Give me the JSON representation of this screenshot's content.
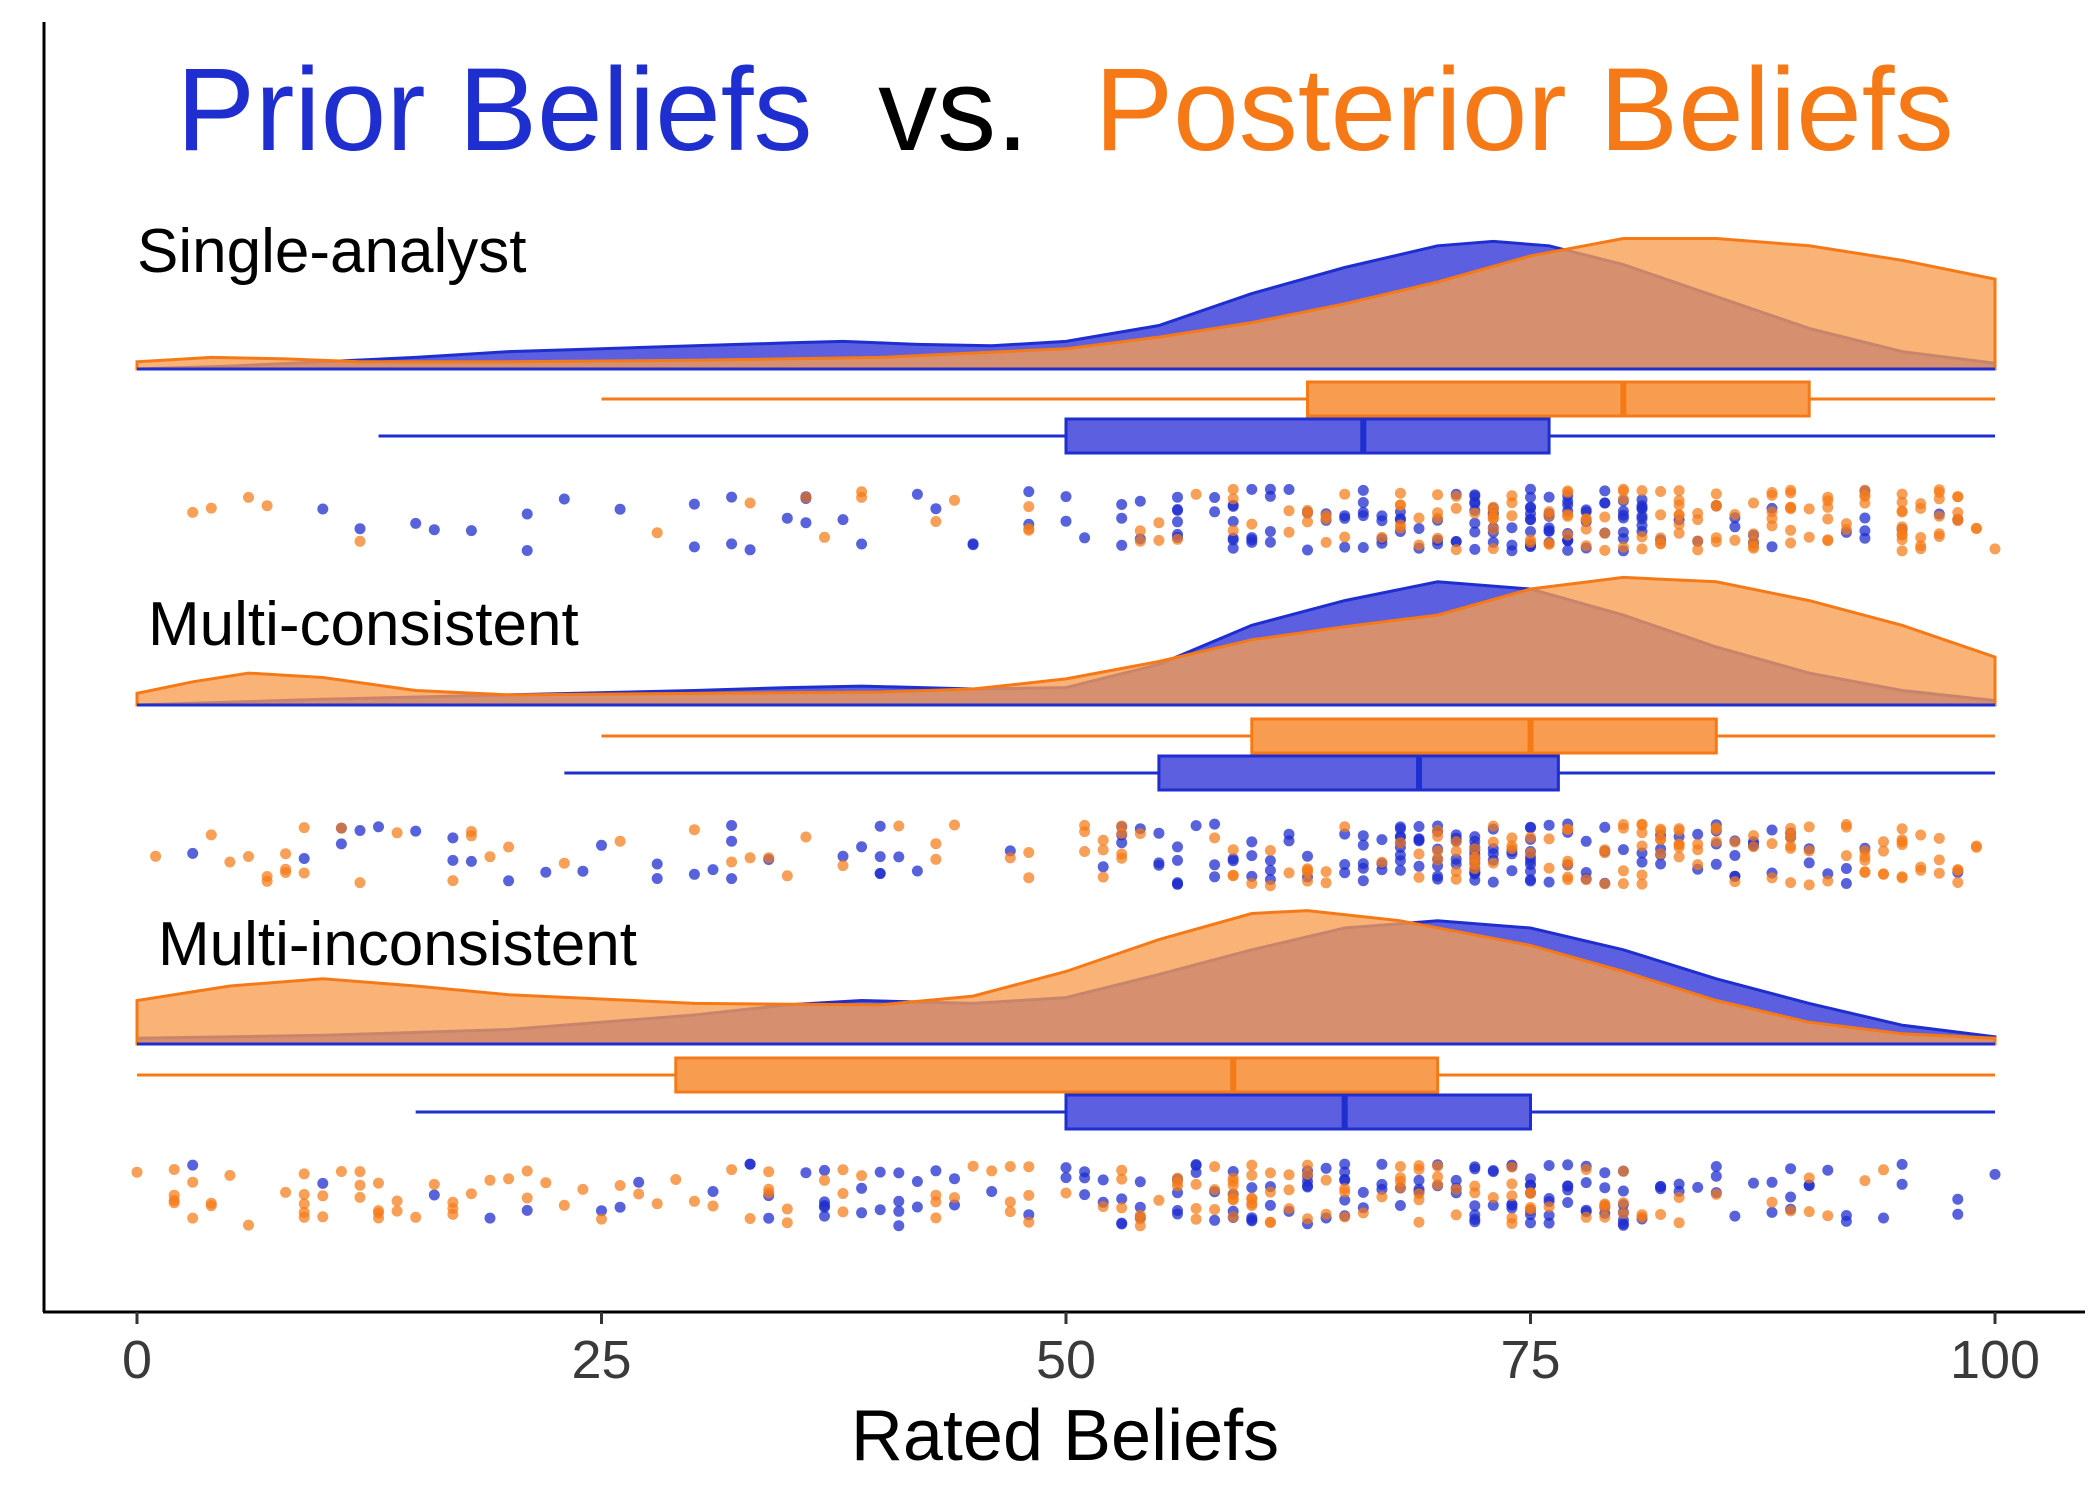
{
  "chart_data": {
    "type": "raincloud",
    "title": {
      "parts": [
        {
          "text": "Prior Beliefs",
          "color": "#1f2ecf"
        },
        {
          "text": "vs.",
          "color": "#000000"
        },
        {
          "text": "Posterior Beliefs",
          "color": "#f57a17"
        }
      ]
    },
    "xlabel": "Rated Beliefs",
    "xlim": [
      0,
      100
    ],
    "xticks": [
      0,
      25,
      50,
      75,
      100
    ],
    "grid": false,
    "colors": {
      "prior": "#1f2ecf",
      "prior_fill": "#5b5fe0",
      "posterior": "#f57a17",
      "posterior_fill": "#f89d4f"
    },
    "panels": [
      {
        "label": "Single-analyst",
        "prior": {
          "density": [
            [
              0,
              0.0
            ],
            [
              5,
              0.02
            ],
            [
              10,
              0.05
            ],
            [
              15,
              0.08
            ],
            [
              20,
              0.12
            ],
            [
              25,
              0.14
            ],
            [
              30,
              0.16
            ],
            [
              35,
              0.18
            ],
            [
              38,
              0.19
            ],
            [
              42,
              0.17
            ],
            [
              46,
              0.16
            ],
            [
              50,
              0.19
            ],
            [
              55,
              0.3
            ],
            [
              60,
              0.52
            ],
            [
              65,
              0.7
            ],
            [
              70,
              0.85
            ],
            [
              73,
              0.88
            ],
            [
              76,
              0.85
            ],
            [
              80,
              0.72
            ],
            [
              85,
              0.5
            ],
            [
              90,
              0.28
            ],
            [
              95,
              0.12
            ],
            [
              100,
              0.04
            ]
          ],
          "box": {
            "whisker_low": 13,
            "q1": 50,
            "median": 66,
            "q3": 76,
            "whisker_high": 100
          }
        },
        "posterior": {
          "density": [
            [
              0,
              0.05
            ],
            [
              4,
              0.08
            ],
            [
              8,
              0.07
            ],
            [
              12,
              0.05
            ],
            [
              20,
              0.05
            ],
            [
              30,
              0.06
            ],
            [
              40,
              0.08
            ],
            [
              50,
              0.14
            ],
            [
              55,
              0.22
            ],
            [
              60,
              0.32
            ],
            [
              65,
              0.45
            ],
            [
              70,
              0.6
            ],
            [
              75,
              0.78
            ],
            [
              80,
              0.9
            ],
            [
              85,
              0.9
            ],
            [
              90,
              0.85
            ],
            [
              95,
              0.75
            ],
            [
              100,
              0.62
            ]
          ],
          "box": {
            "whisker_low": 25,
            "q1": 63,
            "median": 80,
            "q3": 90,
            "whisker_high": 100
          }
        }
      },
      {
        "label": "Multi-consistent",
        "prior": {
          "density": [
            [
              0,
              0.0
            ],
            [
              10,
              0.04
            ],
            [
              20,
              0.07
            ],
            [
              30,
              0.1
            ],
            [
              35,
              0.12
            ],
            [
              39,
              0.13
            ],
            [
              45,
              0.11
            ],
            [
              50,
              0.12
            ],
            [
              55,
              0.28
            ],
            [
              60,
              0.55
            ],
            [
              65,
              0.72
            ],
            [
              70,
              0.85
            ],
            [
              75,
              0.8
            ],
            [
              80,
              0.62
            ],
            [
              85,
              0.4
            ],
            [
              90,
              0.22
            ],
            [
              95,
              0.1
            ],
            [
              100,
              0.03
            ]
          ],
          "box": {
            "whisker_low": 23,
            "q1": 55,
            "median": 69,
            "q3": 76.5,
            "whisker_high": 100
          }
        },
        "posterior": {
          "density": [
            [
              0,
              0.08
            ],
            [
              3,
              0.16
            ],
            [
              6,
              0.22
            ],
            [
              10,
              0.19
            ],
            [
              15,
              0.1
            ],
            [
              20,
              0.07
            ],
            [
              30,
              0.08
            ],
            [
              40,
              0.09
            ],
            [
              45,
              0.11
            ],
            [
              50,
              0.18
            ],
            [
              55,
              0.3
            ],
            [
              60,
              0.45
            ],
            [
              65,
              0.54
            ],
            [
              70,
              0.62
            ],
            [
              75,
              0.8
            ],
            [
              80,
              0.88
            ],
            [
              85,
              0.85
            ],
            [
              90,
              0.72
            ],
            [
              95,
              0.55
            ],
            [
              100,
              0.33
            ]
          ],
          "box": {
            "whisker_low": 25,
            "q1": 60,
            "median": 75,
            "q3": 85,
            "whisker_high": 100
          }
        }
      },
      {
        "label": "Multi-inconsistent",
        "prior": {
          "density": [
            [
              0,
              0.04
            ],
            [
              10,
              0.06
            ],
            [
              20,
              0.1
            ],
            [
              30,
              0.2
            ],
            [
              35,
              0.27
            ],
            [
              39,
              0.3
            ],
            [
              45,
              0.28
            ],
            [
              50,
              0.32
            ],
            [
              55,
              0.48
            ],
            [
              60,
              0.65
            ],
            [
              65,
              0.8
            ],
            [
              70,
              0.85
            ],
            [
              75,
              0.8
            ],
            [
              80,
              0.65
            ],
            [
              85,
              0.45
            ],
            [
              90,
              0.28
            ],
            [
              95,
              0.13
            ],
            [
              100,
              0.05
            ]
          ],
          "box": {
            "whisker_low": 15,
            "q1": 50,
            "median": 65,
            "q3": 75,
            "whisker_high": 100
          }
        },
        "posterior": {
          "density": [
            [
              0,
              0.3
            ],
            [
              5,
              0.4
            ],
            [
              10,
              0.45
            ],
            [
              15,
              0.4
            ],
            [
              20,
              0.34
            ],
            [
              30,
              0.28
            ],
            [
              40,
              0.27
            ],
            [
              45,
              0.33
            ],
            [
              50,
              0.5
            ],
            [
              55,
              0.72
            ],
            [
              60,
              0.9
            ],
            [
              63,
              0.92
            ],
            [
              68,
              0.85
            ],
            [
              75,
              0.68
            ],
            [
              80,
              0.5
            ],
            [
              85,
              0.3
            ],
            [
              90,
              0.15
            ],
            [
              95,
              0.07
            ],
            [
              100,
              0.04
            ]
          ],
          "box": {
            "whisker_low": 0,
            "q1": 29,
            "median": 59,
            "q3": 70,
            "whisker_high": 100
          }
        }
      }
    ]
  }
}
